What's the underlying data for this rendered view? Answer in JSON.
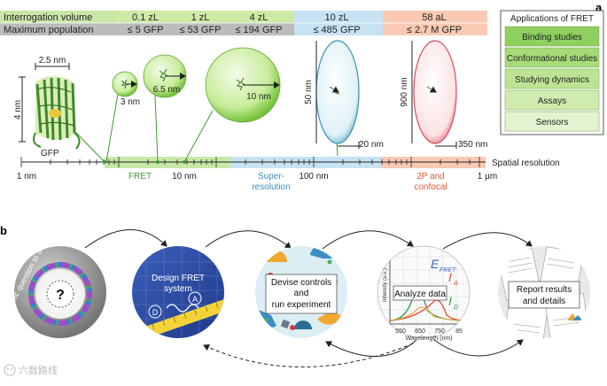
{
  "panel_a": {
    "label": "a",
    "table": {
      "row1_label": "Interrogation volume",
      "row2_label": "Maximum population",
      "cols": [
        {
          "vol": "0.1 zL",
          "pop": "≤ 5 GFP"
        },
        {
          "vol": "1 zL",
          "pop": "≤ 53 GFP"
        },
        {
          "vol": "4 zL",
          "pop": "≤ 194 GFP"
        },
        {
          "vol": "10 zL",
          "pop": "≤ 485 GFP"
        },
        {
          "vol": "58 aL",
          "pop": "≤ 2.7 M GFP"
        }
      ]
    },
    "applications": {
      "title": "Applications of FRET",
      "items": [
        "Binding studies",
        "Conformational studies",
        "Studying dynamics",
        "Assays",
        "Sensors"
      ]
    },
    "gfp": {
      "width": "2.5 nm",
      "height": "4 nm",
      "label": "GFP"
    },
    "spheres": {
      "s1": "3 nm",
      "s2": "6.5 nm",
      "s3": "10 nm"
    },
    "ellipse1": {
      "height": "50 nm",
      "width": "20 nm"
    },
    "ellipse2": {
      "height": "900 nm",
      "width": "350 nm"
    },
    "axis": {
      "title": "Spatial resolution",
      "ticks": [
        "1 nm",
        "10 nm",
        "100 nm",
        "1 µm"
      ],
      "regions": {
        "fret": "FRET",
        "super1": "Super-",
        "super2": "resolution",
        "conf1": "2P and",
        "conf2": "confocal"
      }
    }
  },
  "panel_b": {
    "label": "b",
    "steps": {
      "question": "Scientific question to address",
      "question_mark": "?",
      "design1": "Design FRET",
      "design2": "system",
      "donor": "D",
      "acceptor": "A",
      "devise1": "Devise controls",
      "devise2": "and",
      "devise3": "run experiment",
      "analyze": "Analyze data",
      "report1": "Report results",
      "report2": "and details"
    },
    "plot": {
      "ylabel": "Intensity (a.u.)",
      "xlabel": "Wavelength (nm)",
      "ticks": [
        "550",
        "650",
        "750",
        "85"
      ],
      "efret": "E",
      "efret_sub": "FRET",
      "ia": "I",
      "ia_sub": "A",
      "id": "I",
      "id_sub": "D"
    },
    "watermark": "六数路线"
  },
  "colors": {
    "green_band": "#c9e8a8",
    "blue_band": "#c6e2f3",
    "orange_band": "#f9c9b3",
    "row_gray": "#bcbcbc",
    "app_green": "#8fcf5f"
  }
}
